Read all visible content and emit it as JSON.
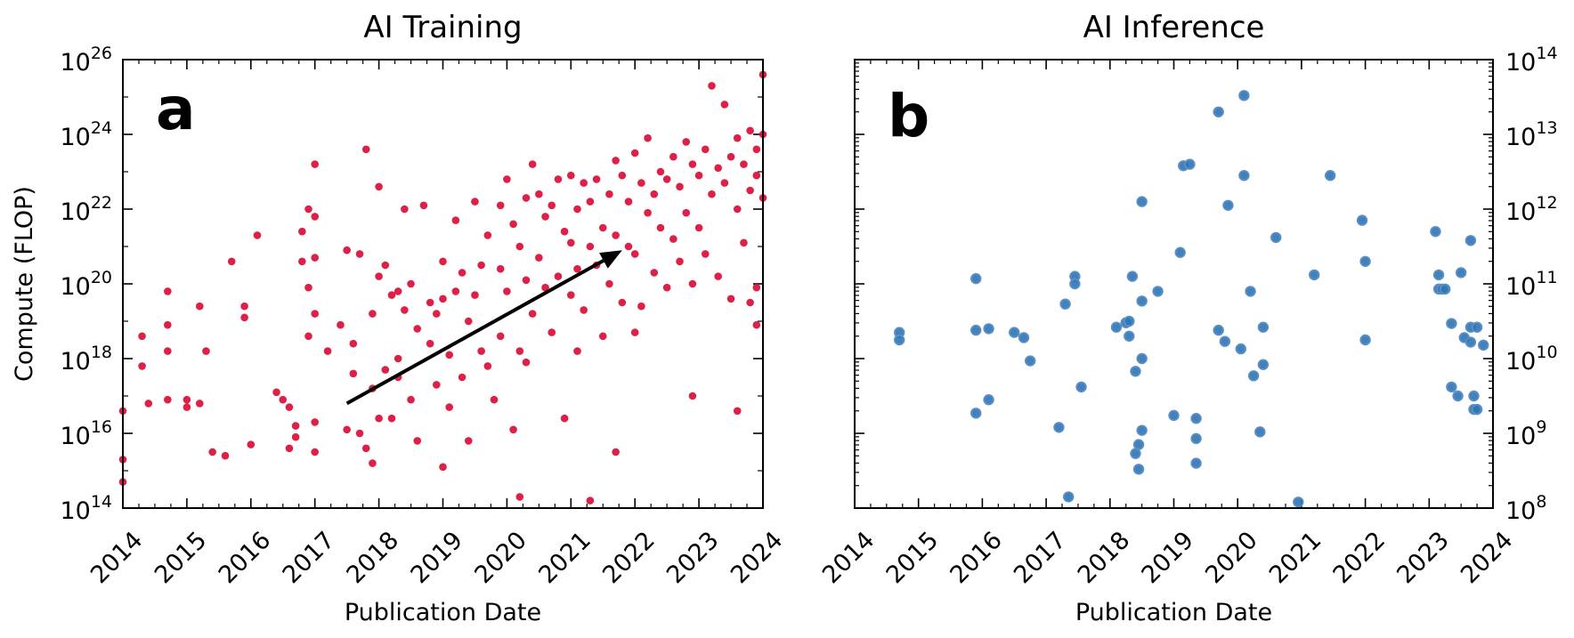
{
  "colors": {
    "training": "#dc143c",
    "inference_fill": "#2e74b5",
    "inference_edge": "#5b8fc4",
    "arrow": "#000000"
  },
  "chart_data": [
    {
      "id": "a",
      "type": "scatter",
      "panel_label": "a",
      "title": "AI Training",
      "xlabel": "Publication Date",
      "ylabel": "Compute (FLOP)",
      "x_unit": "year",
      "xlim": [
        2014,
        2024
      ],
      "ylim_exp": [
        14,
        26
      ],
      "yscale": "log",
      "xticks": [
        "2014",
        "2015",
        "2016",
        "2017",
        "2018",
        "2019",
        "2020",
        "2021",
        "2022",
        "2023",
        "2024"
      ],
      "yticks": [
        {
          "base": "10",
          "exp": "14"
        },
        {
          "base": "10",
          "exp": "16"
        },
        {
          "base": "10",
          "exp": "18"
        },
        {
          "base": "10",
          "exp": "20"
        },
        {
          "base": "10",
          "exp": "22"
        },
        {
          "base": "10",
          "exp": "24"
        },
        {
          "base": "10",
          "exp": "26"
        }
      ],
      "y_axis_side": "left",
      "trend_arrow": {
        "from": [
          2017.5,
          16.8
        ],
        "to": [
          2021.8,
          20.9
        ]
      },
      "points": [
        [
          2014.0,
          16.6
        ],
        [
          2014.0,
          15.3
        ],
        [
          2014.0,
          14.7
        ],
        [
          2014.3,
          17.8
        ],
        [
          2014.3,
          18.6
        ],
        [
          2014.4,
          16.8
        ],
        [
          2014.7,
          18.2
        ],
        [
          2014.7,
          16.9
        ],
        [
          2014.7,
          19.8
        ],
        [
          2014.7,
          18.9
        ],
        [
          2015.0,
          16.9
        ],
        [
          2015.0,
          16.7
        ],
        [
          2015.2,
          16.8
        ],
        [
          2015.2,
          19.4
        ],
        [
          2015.3,
          18.2
        ],
        [
          2015.4,
          15.5
        ],
        [
          2015.6,
          15.4
        ],
        [
          2015.7,
          20.6
        ],
        [
          2015.9,
          19.4
        ],
        [
          2015.9,
          19.1
        ],
        [
          2016.0,
          15.7
        ],
        [
          2016.1,
          21.3
        ],
        [
          2016.4,
          17.1
        ],
        [
          2016.5,
          16.9
        ],
        [
          2016.6,
          16.7
        ],
        [
          2016.6,
          15.6
        ],
        [
          2016.7,
          16.2
        ],
        [
          2016.7,
          15.9
        ],
        [
          2016.8,
          20.6
        ],
        [
          2016.8,
          21.4
        ],
        [
          2016.9,
          22.0
        ],
        [
          2016.9,
          19.9
        ],
        [
          2016.9,
          18.6
        ],
        [
          2017.0,
          21.8
        ],
        [
          2017.0,
          20.7
        ],
        [
          2017.0,
          19.2
        ],
        [
          2017.0,
          16.3
        ],
        [
          2017.0,
          15.5
        ],
        [
          2017.0,
          23.2
        ],
        [
          2017.2,
          18.2
        ],
        [
          2017.4,
          18.9
        ],
        [
          2017.5,
          20.9
        ],
        [
          2017.5,
          16.1
        ],
        [
          2017.6,
          18.4
        ],
        [
          2017.6,
          17.6
        ],
        [
          2017.7,
          20.8
        ],
        [
          2017.7,
          16.0
        ],
        [
          2017.8,
          15.6
        ],
        [
          2017.8,
          23.6
        ],
        [
          2017.9,
          17.2
        ],
        [
          2017.9,
          19.2
        ],
        [
          2017.9,
          15.2
        ],
        [
          2018.0,
          16.4
        ],
        [
          2018.0,
          22.6
        ],
        [
          2018.0,
          20.2
        ],
        [
          2018.1,
          20.5
        ],
        [
          2018.1,
          17.7
        ],
        [
          2018.2,
          19.7
        ],
        [
          2018.2,
          16.4
        ],
        [
          2018.3,
          19.8
        ],
        [
          2018.3,
          17.5
        ],
        [
          2018.3,
          18.0
        ],
        [
          2018.4,
          22.0
        ],
        [
          2018.4,
          19.3
        ],
        [
          2018.5,
          20.0
        ],
        [
          2018.5,
          16.9
        ],
        [
          2018.6,
          18.8
        ],
        [
          2018.6,
          15.8
        ],
        [
          2018.7,
          22.1
        ],
        [
          2018.8,
          19.5
        ],
        [
          2018.8,
          18.4
        ],
        [
          2018.9,
          19.2
        ],
        [
          2018.9,
          17.3
        ],
        [
          2019.0,
          20.6
        ],
        [
          2019.0,
          19.6
        ],
        [
          2019.0,
          15.1
        ],
        [
          2019.1,
          18.1
        ],
        [
          2019.1,
          16.7
        ],
        [
          2019.2,
          21.7
        ],
        [
          2019.2,
          19.8
        ],
        [
          2019.3,
          20.3
        ],
        [
          2019.3,
          17.5
        ],
        [
          2019.4,
          19.0
        ],
        [
          2019.4,
          15.8
        ],
        [
          2019.5,
          22.2
        ],
        [
          2019.5,
          19.7
        ],
        [
          2019.6,
          20.5
        ],
        [
          2019.6,
          18.2
        ],
        [
          2019.7,
          21.3
        ],
        [
          2019.7,
          17.8
        ],
        [
          2019.8,
          16.9
        ],
        [
          2019.9,
          22.1
        ],
        [
          2019.9,
          20.4
        ],
        [
          2019.9,
          18.6
        ],
        [
          2020.0,
          22.8
        ],
        [
          2020.0,
          19.8
        ],
        [
          2020.1,
          21.6
        ],
        [
          2020.1,
          16.1
        ],
        [
          2020.2,
          21.0
        ],
        [
          2020.2,
          18.2
        ],
        [
          2020.2,
          14.3
        ],
        [
          2020.3,
          22.3
        ],
        [
          2020.3,
          20.1
        ],
        [
          2020.3,
          17.9
        ],
        [
          2020.4,
          23.2
        ],
        [
          2020.4,
          19.2
        ],
        [
          2020.5,
          22.4
        ],
        [
          2020.5,
          20.7
        ],
        [
          2020.6,
          21.8
        ],
        [
          2020.6,
          19.9
        ],
        [
          2020.7,
          22.1
        ],
        [
          2020.7,
          18.7
        ],
        [
          2020.8,
          22.8
        ],
        [
          2020.8,
          20.2
        ],
        [
          2020.9,
          21.4
        ],
        [
          2020.9,
          16.4
        ],
        [
          2021.0,
          22.9
        ],
        [
          2021.0,
          21.1
        ],
        [
          2021.0,
          19.7
        ],
        [
          2021.1,
          22.0
        ],
        [
          2021.1,
          20.4
        ],
        [
          2021.1,
          18.2
        ],
        [
          2021.2,
          22.7
        ],
        [
          2021.2,
          19.3
        ],
        [
          2021.3,
          22.2
        ],
        [
          2021.3,
          21.0
        ],
        [
          2021.3,
          14.2
        ],
        [
          2021.4,
          22.8
        ],
        [
          2021.4,
          20.5
        ],
        [
          2021.5,
          21.5
        ],
        [
          2021.5,
          18.6
        ],
        [
          2021.6,
          22.4
        ],
        [
          2021.6,
          20.0
        ],
        [
          2021.7,
          23.3
        ],
        [
          2021.7,
          21.3
        ],
        [
          2021.7,
          15.5
        ],
        [
          2021.8,
          22.9
        ],
        [
          2021.8,
          19.5
        ],
        [
          2021.9,
          22.2
        ],
        [
          2021.9,
          21.0
        ],
        [
          2022.0,
          23.5
        ],
        [
          2022.0,
          20.8
        ],
        [
          2022.0,
          18.7
        ],
        [
          2022.1,
          22.7
        ],
        [
          2022.1,
          19.4
        ],
        [
          2022.2,
          23.9
        ],
        [
          2022.2,
          21.9
        ],
        [
          2022.3,
          22.4
        ],
        [
          2022.3,
          20.3
        ],
        [
          2022.4,
          23.0
        ],
        [
          2022.4,
          21.5
        ],
        [
          2022.5,
          22.8
        ],
        [
          2022.5,
          19.9
        ],
        [
          2022.6,
          23.4
        ],
        [
          2022.6,
          21.2
        ],
        [
          2022.7,
          22.6
        ],
        [
          2022.7,
          20.6
        ],
        [
          2022.8,
          23.8
        ],
        [
          2022.8,
          21.9
        ],
        [
          2022.9,
          23.2
        ],
        [
          2022.9,
          20.0
        ],
        [
          2022.9,
          17.0
        ],
        [
          2023.0,
          22.9
        ],
        [
          2023.0,
          21.5
        ],
        [
          2023.1,
          23.6
        ],
        [
          2023.1,
          20.8
        ],
        [
          2023.2,
          25.3
        ],
        [
          2023.2,
          22.4
        ],
        [
          2023.3,
          23.1
        ],
        [
          2023.3,
          20.2
        ],
        [
          2023.4,
          24.8
        ],
        [
          2023.4,
          22.7
        ],
        [
          2023.5,
          23.4
        ],
        [
          2023.5,
          19.6
        ],
        [
          2023.6,
          23.9
        ],
        [
          2023.6,
          22.0
        ],
        [
          2023.6,
          16.6
        ],
        [
          2023.7,
          23.2
        ],
        [
          2023.7,
          21.1
        ],
        [
          2023.8,
          24.1
        ],
        [
          2023.8,
          22.5
        ],
        [
          2023.8,
          19.5
        ],
        [
          2023.9,
          23.6
        ],
        [
          2023.9,
          22.9
        ],
        [
          2023.9,
          19.9
        ],
        [
          2023.9,
          18.9
        ],
        [
          2024.0,
          25.6
        ],
        [
          2024.0,
          24.0
        ],
        [
          2024.0,
          22.3
        ]
      ]
    },
    {
      "id": "b",
      "type": "scatter",
      "panel_label": "b",
      "title": "AI Inference",
      "xlabel": "Publication Date",
      "ylabel": "",
      "x_unit": "year",
      "xlim": [
        2014,
        2024
      ],
      "ylim_exp": [
        8,
        14
      ],
      "yscale": "log",
      "xticks": [
        "2014",
        "2015",
        "2016",
        "2017",
        "2018",
        "2019",
        "2020",
        "2021",
        "2022",
        "2023",
        "2024"
      ],
      "yticks": [
        {
          "base": "10",
          "exp": "8"
        },
        {
          "base": "10",
          "exp": "9"
        },
        {
          "base": "10",
          "exp": "10"
        },
        {
          "base": "10",
          "exp": "11"
        },
        {
          "base": "10",
          "exp": "12"
        },
        {
          "base": "10",
          "exp": "13"
        },
        {
          "base": "10",
          "exp": "14"
        }
      ],
      "y_axis_side": "right",
      "points": [
        [
          2014.7,
          10.35
        ],
        [
          2014.7,
          10.25
        ],
        [
          2015.9,
          11.07
        ],
        [
          2015.9,
          10.38
        ],
        [
          2015.9,
          9.27
        ],
        [
          2016.1,
          10.4
        ],
        [
          2016.1,
          9.45
        ],
        [
          2016.5,
          10.35
        ],
        [
          2016.65,
          10.28
        ],
        [
          2016.75,
          9.97
        ],
        [
          2017.2,
          9.08
        ],
        [
          2017.3,
          10.73
        ],
        [
          2017.35,
          8.15
        ],
        [
          2017.45,
          11.1
        ],
        [
          2017.45,
          11.0
        ],
        [
          2017.55,
          9.62
        ],
        [
          2018.1,
          10.42
        ],
        [
          2018.25,
          10.48
        ],
        [
          2018.3,
          10.3
        ],
        [
          2018.3,
          10.5
        ],
        [
          2018.35,
          11.1
        ],
        [
          2018.4,
          9.83
        ],
        [
          2018.4,
          8.73
        ],
        [
          2018.45,
          8.85
        ],
        [
          2018.45,
          8.52
        ],
        [
          2018.5,
          10.77
        ],
        [
          2018.5,
          12.1
        ],
        [
          2018.5,
          9.04
        ],
        [
          2018.5,
          10.0
        ],
        [
          2018.75,
          10.9
        ],
        [
          2019.0,
          9.24
        ],
        [
          2019.1,
          11.42
        ],
        [
          2019.15,
          12.58
        ],
        [
          2019.25,
          12.6
        ],
        [
          2019.35,
          9.2
        ],
        [
          2019.35,
          8.93
        ],
        [
          2019.35,
          8.6
        ],
        [
          2019.7,
          13.3
        ],
        [
          2019.7,
          10.38
        ],
        [
          2019.8,
          10.23
        ],
        [
          2019.85,
          12.05
        ],
        [
          2020.05,
          10.13
        ],
        [
          2020.1,
          12.45
        ],
        [
          2020.1,
          13.52
        ],
        [
          2020.2,
          10.9
        ],
        [
          2020.25,
          9.77
        ],
        [
          2020.35,
          9.02
        ],
        [
          2020.4,
          10.42
        ],
        [
          2020.4,
          9.92
        ],
        [
          2020.6,
          11.62
        ],
        [
          2020.95,
          8.08
        ],
        [
          2021.2,
          11.12
        ],
        [
          2021.45,
          12.45
        ],
        [
          2021.95,
          11.85
        ],
        [
          2022.0,
          11.3
        ],
        [
          2022.0,
          10.25
        ],
        [
          2023.1,
          11.7
        ],
        [
          2023.15,
          11.12
        ],
        [
          2023.15,
          10.93
        ],
        [
          2023.2,
          10.93
        ],
        [
          2023.25,
          10.93
        ],
        [
          2023.35,
          10.47
        ],
        [
          2023.35,
          9.62
        ],
        [
          2023.45,
          9.5
        ],
        [
          2023.5,
          11.15
        ],
        [
          2023.55,
          10.28
        ],
        [
          2023.65,
          11.58
        ],
        [
          2023.65,
          10.42
        ],
        [
          2023.65,
          10.22
        ],
        [
          2023.7,
          9.5
        ],
        [
          2023.7,
          9.32
        ],
        [
          2023.75,
          9.32
        ],
        [
          2023.75,
          10.42
        ],
        [
          2023.85,
          10.18
        ]
      ]
    }
  ]
}
